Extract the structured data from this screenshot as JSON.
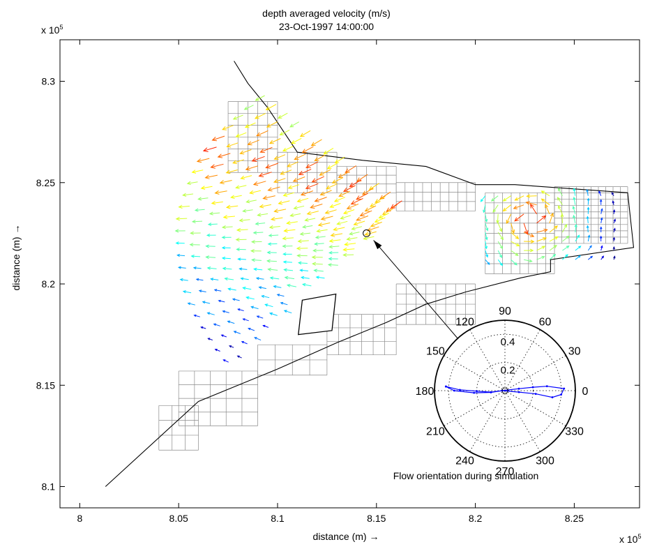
{
  "chart_data": {
    "type": "quiver",
    "title": "depth averaged velocity (m/s)",
    "subtitle": "23-Oct-1997 14:00:00",
    "xlabel": "distance (m) →",
    "ylabel": "distance (m) →",
    "x_exponent": "x 10",
    "y_exponent": "x 10",
    "exponent_power": "5",
    "xlim": [
      7.99,
      8.283
    ],
    "ylim": [
      8.0895,
      8.3205
    ],
    "xticks": [
      "8",
      "8.05",
      "8.1",
      "8.15",
      "8.2",
      "8.25"
    ],
    "yticks": [
      "8.1",
      "8.15",
      "8.2",
      "8.25",
      "8.3"
    ],
    "xtick_values": [
      8.0,
      8.05,
      8.1,
      8.15,
      8.2,
      8.25
    ],
    "ytick_values": [
      8.1,
      8.15,
      8.2,
      8.25,
      8.3
    ],
    "boundary_x": [
      8.013,
      8.06,
      8.1,
      8.13,
      8.155,
      8.175,
      8.195,
      8.223,
      8.238,
      8.238,
      8.28,
      8.277,
      8.22,
      8.2,
      8.175,
      8.143,
      8.11,
      8.095,
      8.085,
      8.078
    ],
    "boundary_y": [
      8.1,
      8.142,
      8.158,
      8.171,
      8.181,
      8.19,
      8.196,
      8.203,
      8.206,
      8.212,
      8.218,
      8.245,
      8.249,
      8.249,
      8.258,
      8.261,
      8.265,
      8.287,
      8.299,
      8.31
    ],
    "island_x": [
      8.1105,
      8.1275,
      8.1295,
      8.1125
    ],
    "island_y": [
      8.175,
      8.177,
      8.195,
      8.192
    ],
    "marker": {
      "x": 8.145,
      "y": 8.225
    },
    "inset": {
      "type": "polar",
      "caption": "Flow orientation during simulation",
      "angle_labels": [
        "90",
        "60",
        "30",
        "0",
        "330",
        "300",
        "270",
        "240",
        "210",
        "180",
        "150",
        "120"
      ],
      "radial_labels": [
        "0.2",
        "0.4"
      ],
      "rmax": 0.5,
      "track": [
        [
          0.42,
          176
        ],
        [
          0.32,
          179
        ],
        [
          0.2,
          181
        ],
        [
          0.1,
          186
        ],
        [
          0.02,
          180
        ],
        [
          0.1,
          354
        ],
        [
          0.22,
          354
        ],
        [
          0.34,
          352
        ],
        [
          0.4,
          356
        ],
        [
          0.42,
          2
        ],
        [
          0.3,
          6
        ],
        [
          0.2,
          7
        ],
        [
          0.1,
          8
        ],
        [
          0.02,
          180
        ],
        [
          0.1,
          187
        ],
        [
          0.22,
          184
        ],
        [
          0.36,
          180
        ],
        [
          0.42,
          176
        ]
      ]
    },
    "colormap": [
      "#00008f",
      "#0000ff",
      "#0080ff",
      "#00ffff",
      "#80ff80",
      "#ffff00",
      "#ff8000",
      "#ff0000",
      "#800000"
    ],
    "grid": false,
    "legend": "none"
  }
}
